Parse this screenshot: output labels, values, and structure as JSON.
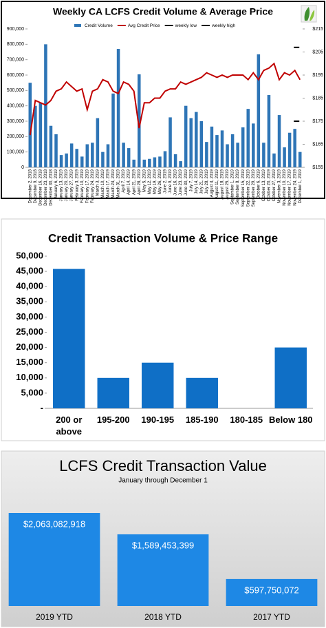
{
  "chart_data": [
    {
      "type": "bar",
      "title": "Weekly CA LCFS Credit Volume & Average Price",
      "categories": [
        "December 2, 2018",
        "December 9, 2018",
        "December 16, 2018",
        "December 23, 2018",
        "December 30, 2018",
        "January 6, 2019",
        "January 13, 2019",
        "January 20, 2019",
        "January 27, 2019",
        "February 3, 2019",
        "February 10, 2019",
        "February 17, 2019",
        "February 24, 2019",
        "March 3, 2019",
        "March 10, 2019",
        "March 17, 2019",
        "March 24, 2019",
        "March 31, 2019",
        "April 7, 2019",
        "April 14, 2019",
        "April 21, 2019",
        "April 28, 2019",
        "May 5, 2019",
        "May 12, 2019",
        "May 19, 2019",
        "May 26, 2019",
        "June 2, 2019",
        "June 9, 2019",
        "June 16, 2019",
        "June 23, 2019",
        "June 30, 2019",
        "July 7, 2019",
        "July 14, 2019",
        "July 21, 2019",
        "July 28, 2019",
        "August 4, 2019",
        "August 11, 2019",
        "August 18, 2019",
        "August 25, 2019",
        "September 1, 2019",
        "September 8, 2019",
        "September 15, 2019",
        "September 22, 2019",
        "September 29, 2019",
        "October 6, 2019",
        "October 13, 2019",
        "October 20, 2019",
        "October 27, 2019",
        "November 3, 2019",
        "November 10, 2019",
        "November 17, 2019",
        "November 24, 2019",
        "December 1, 2019"
      ],
      "series": [
        {
          "name": "Credit Volume",
          "type": "bar",
          "color": "#2e75b6",
          "values": [
            550000,
            400000,
            420000,
            800000,
            270000,
            215000,
            80000,
            90000,
            155000,
            120000,
            70000,
            150000,
            160000,
            320000,
            100000,
            150000,
            480000,
            770000,
            160000,
            125000,
            50000,
            605000,
            50000,
            55000,
            65000,
            70000,
            105000,
            325000,
            85000,
            40000,
            400000,
            320000,
            360000,
            300000,
            165000,
            265000,
            210000,
            240000,
            150000,
            215000,
            160000,
            260000,
            380000,
            285000,
            735000,
            160000,
            470000,
            90000,
            340000,
            130000,
            225000,
            250000,
            100000
          ]
        },
        {
          "name": "Avg Credit Price",
          "type": "line",
          "axis": "y2",
          "color": "#c00000",
          "values": [
            169,
            184,
            183,
            182,
            184,
            188,
            189,
            192,
            190,
            188,
            189,
            180,
            188,
            189,
            193,
            192,
            188,
            187,
            192,
            191,
            188,
            172,
            183,
            183,
            185,
            185,
            188,
            189,
            189,
            192,
            191,
            192,
            193,
            194,
            196,
            195,
            194,
            195,
            194,
            195,
            195,
            195,
            193,
            196,
            193,
            197,
            198,
            200,
            193,
            196,
            195,
            197,
            193
          ]
        },
        {
          "name": "weekly low",
          "type": "marker",
          "axis": "y2",
          "color": "#000000",
          "values": [
            null,
            null,
            null,
            null,
            null,
            null,
            null,
            null,
            null,
            null,
            null,
            null,
            null,
            null,
            null,
            null,
            null,
            null,
            null,
            null,
            null,
            null,
            null,
            null,
            null,
            null,
            null,
            null,
            null,
            null,
            null,
            null,
            null,
            null,
            null,
            null,
            null,
            null,
            null,
            null,
            null,
            null,
            null,
            null,
            null,
            null,
            null,
            null,
            null,
            null,
            null,
            null,
            175
          ]
        },
        {
          "name": "weekly high",
          "type": "marker",
          "axis": "y2",
          "color": "#000000",
          "values": [
            null,
            null,
            null,
            null,
            null,
            null,
            null,
            null,
            null,
            null,
            null,
            null,
            null,
            null,
            null,
            null,
            null,
            null,
            null,
            null,
            null,
            null,
            null,
            null,
            null,
            null,
            null,
            null,
            null,
            null,
            null,
            null,
            null,
            null,
            null,
            null,
            null,
            null,
            null,
            null,
            null,
            null,
            null,
            null,
            null,
            null,
            null,
            null,
            null,
            null,
            null,
            null,
            207
          ]
        }
      ],
      "ylim": [
        0,
        900000
      ],
      "yticks": [
        0,
        {
          "value": 100000,
          "label": "100,000"
        },
        {
          "value": 200000,
          "label": "200,000"
        },
        {
          "value": 300000,
          "label": "300,000"
        },
        {
          "value": 400000,
          "label": "400,000"
        },
        {
          "value": 500000,
          "label": "500,000"
        },
        {
          "value": 600000,
          "label": "600,000"
        },
        {
          "value": 700000,
          "label": "700,000"
        },
        {
          "value": 800000,
          "label": "800,000"
        },
        {
          "value": 900000,
          "label": "900,000"
        }
      ],
      "y2lim": [
        155,
        215
      ],
      "y2ticks": [
        {
          "value": 155,
          "label": "$155"
        },
        {
          "value": 165,
          "label": "$165"
        },
        {
          "value": 175,
          "label": "$175"
        },
        {
          "value": 185,
          "label": "$185"
        },
        {
          "value": 195,
          "label": "$195"
        },
        {
          "value": 205,
          "label": "$205"
        },
        {
          "value": 215,
          "label": "$215"
        }
      ],
      "legend": "top"
    },
    {
      "type": "bar",
      "title": "Credit Transaction Volume & Price Range",
      "categories": [
        "200 or above",
        "195-200",
        "190-195",
        "185-190",
        "180-185",
        "Below 180"
      ],
      "values": [
        45800,
        10000,
        15000,
        10000,
        0,
        20000
      ],
      "color": "#0f6fc6",
      "ylim": [
        0,
        50000
      ],
      "yticks": [
        {
          "value": 0,
          "label": "-"
        },
        {
          "value": 5000,
          "label": "5,000"
        },
        {
          "value": 10000,
          "label": "10,000"
        },
        {
          "value": 15000,
          "label": "15,000"
        },
        {
          "value": 20000,
          "label": "20,000"
        },
        {
          "value": 25000,
          "label": "25,000"
        },
        {
          "value": 30000,
          "label": "30,000"
        },
        {
          "value": 35000,
          "label": "35,000"
        },
        {
          "value": 40000,
          "label": "40,000"
        },
        {
          "value": 45000,
          "label": "45,000"
        },
        {
          "value": 50000,
          "label": "50,000"
        }
      ]
    },
    {
      "type": "bar",
      "title": "LCFS Credit Transaction Value",
      "subtitle": "January through December 1",
      "categories": [
        "2019 YTD",
        "2018 YTD",
        "2017 YTD"
      ],
      "values": [
        2063082918,
        1589453399,
        597750072
      ],
      "value_labels": [
        "$2,063,082,918",
        "$1,589,453,399",
        "$597,750,072"
      ],
      "color": "#1e88e5"
    }
  ]
}
